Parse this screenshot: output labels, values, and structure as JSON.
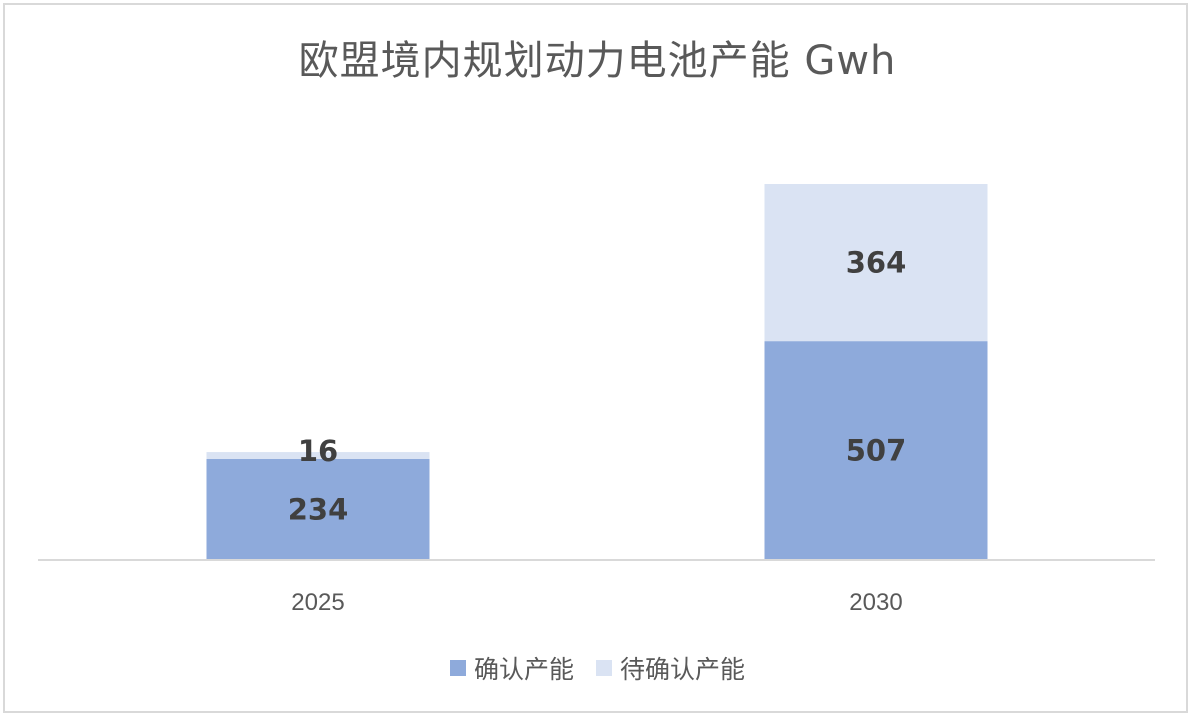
{
  "chart_data": {
    "type": "bar",
    "stacked": true,
    "title": "欧盟境内规划动力电池产能 Gwh",
    "categories": [
      "2025",
      "2030"
    ],
    "series": [
      {
        "name": "确认产能",
        "values": [
          234,
          507
        ],
        "color": "#8eaadb"
      },
      {
        "name": "待确认产能",
        "values": [
          16,
          364
        ],
        "color": "#dae3f3"
      }
    ],
    "xlabel": "",
    "ylabel": "",
    "ylim": [
      0,
      871
    ],
    "grid": false,
    "legend_position": "bottom",
    "data_labels": true
  }
}
